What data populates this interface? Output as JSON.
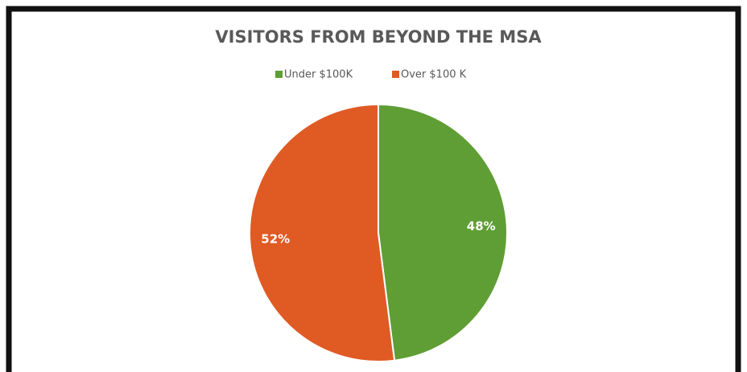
{
  "chart_data": {
    "type": "pie",
    "title": "VISITORS FROM BEYOND THE MSA",
    "categories": [
      "Under $100K",
      "Over $100 K"
    ],
    "values": [
      48,
      52
    ],
    "value_labels": [
      "48%",
      "52%"
    ],
    "colors": [
      "#5f9e35",
      "#e05a24"
    ],
    "legend": "top"
  }
}
